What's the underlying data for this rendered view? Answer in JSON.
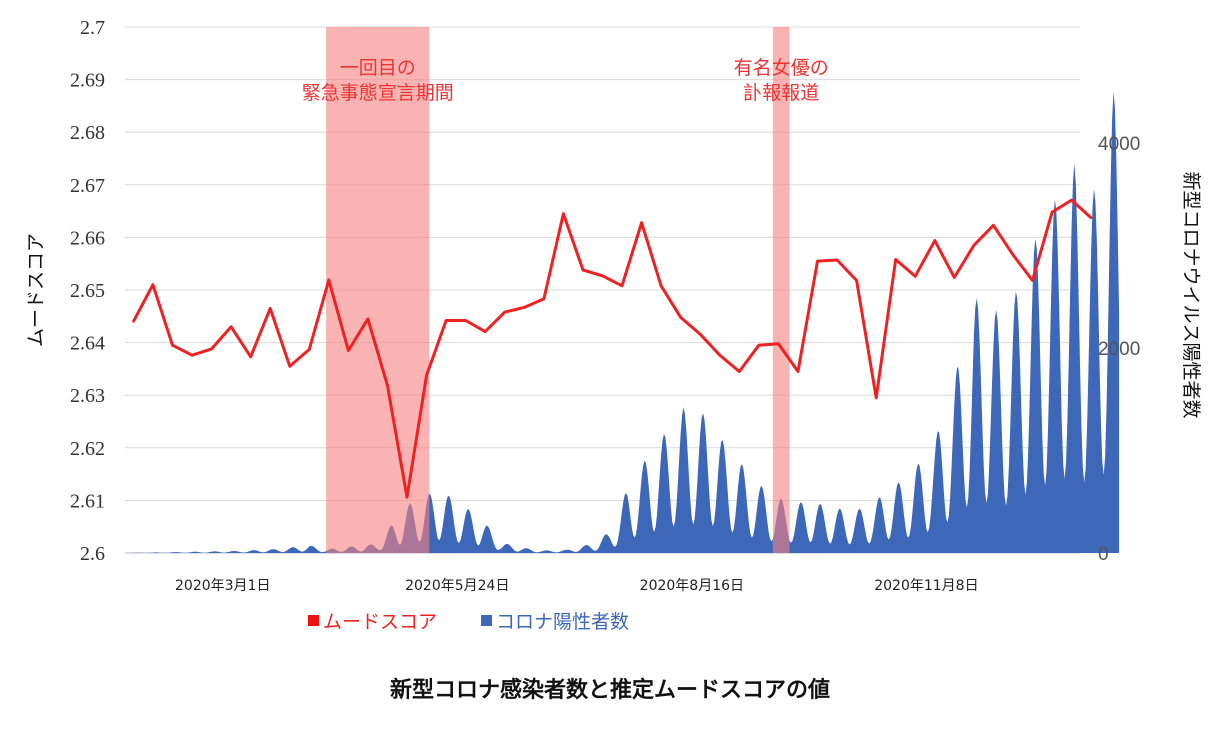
{
  "chart_data": {
    "type": "line+area",
    "caption": "新型コロナ感染者数と推定ムードスコアの値",
    "ylabel_left": "ムードスコア",
    "ylabel_right": "新型コロナウイルス陽性者数",
    "left_ylim": [
      2.6,
      2.7
    ],
    "left_ticks": [
      "2.6",
      "2.61",
      "2.62",
      "2.63",
      "2.64",
      "2.65",
      "2.66",
      "2.67",
      "2.68",
      "2.69",
      "2.7"
    ],
    "right_ylim": [
      0,
      5130
    ],
    "right_ticks": [
      "0",
      "2000",
      "4000"
    ],
    "x_range": [
      "2020-01-26",
      "2021-01-02"
    ],
    "x_tick_labels": [
      {
        "label": "2020年3月1日",
        "date": "2020-03-01"
      },
      {
        "label": "2020年5月24日",
        "date": "2020-05-24"
      },
      {
        "label": "2020年8月16日",
        "date": "2020-08-16"
      },
      {
        "label": "2020年11月8日",
        "date": "2020-11-08"
      }
    ],
    "shaded_periods": [
      {
        "label": [
          "一回目の",
          "緊急事態宣言期間"
        ],
        "start": "2020-04-07",
        "end": "2020-05-14",
        "color": "#f58080"
      },
      {
        "label": [
          "有名女優の",
          "訃報報道"
        ],
        "start": "2020-09-14",
        "end": "2020-09-20",
        "color": "#f58080"
      }
    ],
    "series": [
      {
        "name": "ムードスコア",
        "type": "line",
        "color": "#ee2222",
        "x_day_offset": [
          3,
          10,
          17,
          24,
          31,
          38,
          45,
          52,
          59,
          66,
          73,
          80,
          87,
          94,
          101,
          108,
          115,
          122,
          129,
          136,
          143,
          150,
          157,
          164,
          171,
          178,
          185,
          192,
          199,
          206,
          213,
          220,
          227,
          234,
          241,
          248,
          255,
          262,
          269,
          276,
          283,
          290,
          297,
          304,
          311,
          318,
          325,
          332,
          339,
          346
        ],
        "values": [
          2.644,
          2.651,
          2.6395,
          2.6376,
          2.6388,
          2.643,
          2.6373,
          2.6465,
          2.6355,
          2.6387,
          2.6519,
          2.6385,
          2.6445,
          2.6318,
          2.6106,
          2.6338,
          2.6442,
          2.6442,
          2.6421,
          2.6458,
          2.6467,
          2.6483,
          2.6645,
          2.6538,
          2.6527,
          2.6508,
          2.6628,
          2.6508,
          2.6448,
          2.6416,
          2.6376,
          2.6345,
          2.6395,
          2.6398,
          2.6345,
          2.6555,
          2.6557,
          2.6518,
          2.6295,
          2.6558,
          2.6526,
          2.6594,
          2.6524,
          2.6585,
          2.6623,
          2.6567,
          2.6518,
          2.6648,
          2.6671,
          2.6637
        ]
      },
      {
        "name": "コロナ陽性者数",
        "type": "area",
        "color": "#3d67b8",
        "envelope_day_offset": [
          0,
          30,
          40,
          55,
          66,
          72,
          80,
          90,
          95,
          100,
          106,
          113,
          120,
          127,
          135,
          145,
          150,
          158,
          162,
          168,
          173,
          176,
          180,
          186,
          190,
          200,
          210,
          214,
          220,
          226,
          232,
          240,
          245,
          250,
          260,
          268,
          273,
          280,
          290,
          297,
          304,
          310,
          316,
          322,
          328,
          334,
          340,
          344,
          350,
          354,
          356
        ],
        "envelope_values": [
          0,
          15,
          20,
          40,
          75,
          35,
          60,
          90,
          260,
          450,
          550,
          620,
          480,
          360,
          100,
          40,
          25,
          30,
          55,
          100,
          200,
          320,
          650,
          900,
          1050,
          1420,
          1340,
          1100,
          900,
          700,
          560,
          480,
          520,
          470,
          410,
          470,
          650,
          720,
          1100,
          1700,
          2500,
          2400,
          2300,
          2800,
          3200,
          3500,
          3800,
          3400,
          3700,
          4500,
          4580
        ]
      }
    ]
  }
}
